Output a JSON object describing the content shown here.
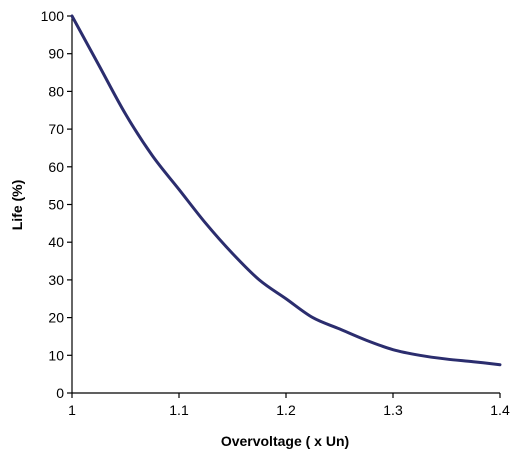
{
  "chart_data": {
    "type": "line",
    "title": "",
    "xlabel": "Overvoltage ( x Un)",
    "ylabel": "Life (%)",
    "xlim": [
      1,
      1.4
    ],
    "ylim": [
      0,
      100
    ],
    "x_ticks": [
      1,
      1.1,
      1.2,
      1.3,
      1.4
    ],
    "x_tick_labels": [
      "1",
      "1.1",
      "1.2",
      "1.3",
      "1.4"
    ],
    "y_ticks": [
      0,
      10,
      20,
      30,
      40,
      50,
      60,
      70,
      80,
      90,
      100
    ],
    "y_tick_labels": [
      "0",
      "10",
      "20",
      "30",
      "40",
      "50",
      "60",
      "70",
      "80",
      "90",
      "100"
    ],
    "grid": false,
    "legend": "none",
    "series": [
      {
        "color": "#2b2d6e",
        "x": [
          1.0,
          1.025,
          1.05,
          1.075,
          1.1,
          1.125,
          1.15,
          1.175,
          1.2,
          1.225,
          1.25,
          1.275,
          1.3,
          1.325,
          1.35,
          1.375,
          1.4
        ],
        "y": [
          100,
          87,
          74,
          63,
          54,
          45,
          37,
          30,
          25,
          20,
          17,
          14,
          11.5,
          10,
          9,
          8.3,
          7.5
        ]
      }
    ]
  }
}
